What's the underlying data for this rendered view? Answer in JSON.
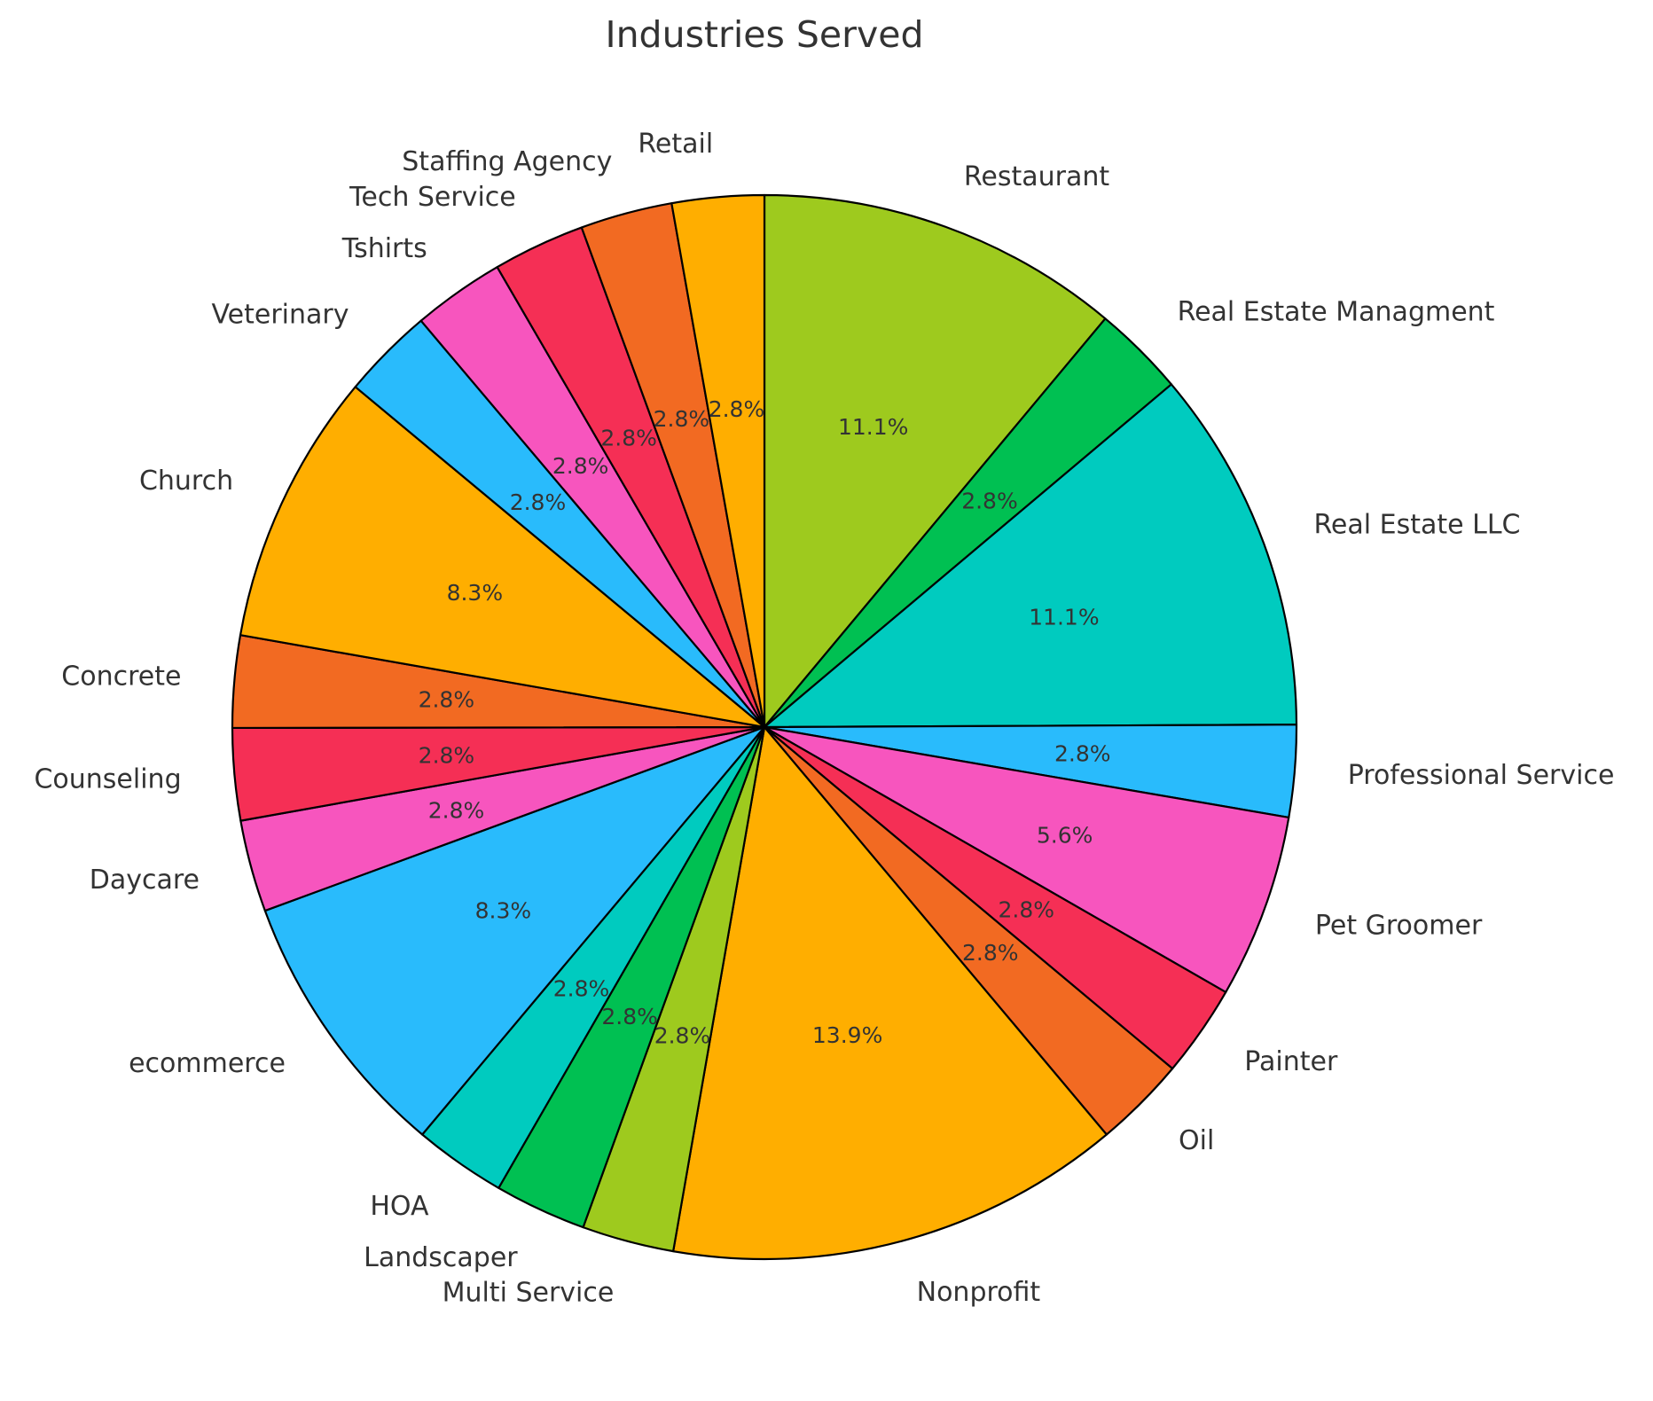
{
  "chart_data": {
    "type": "pie",
    "title": "Industries Served",
    "start_angle_deg": 90,
    "direction": "clockwise",
    "slices": [
      {
        "label": "Restaurant",
        "value": 11.1,
        "pct_label": "11.1%",
        "color": "#9ECA1E"
      },
      {
        "label": "Real Estate Managment",
        "value": 2.8,
        "pct_label": "2.8%",
        "color": "#00C052"
      },
      {
        "label": "Real Estate LLC",
        "value": 11.1,
        "pct_label": "11.1%",
        "color": "#00CBBF"
      },
      {
        "label": "Professional Service",
        "value": 2.8,
        "pct_label": "2.8%",
        "color": "#29BBFC"
      },
      {
        "label": "Pet Groomer",
        "value": 5.6,
        "pct_label": "5.6%",
        "color": "#F755BE"
      },
      {
        "label": "Painter",
        "value": 2.8,
        "pct_label": "2.8%",
        "color": "#F52F55"
      },
      {
        "label": "Oil",
        "value": 2.8,
        "pct_label": "2.8%",
        "color": "#F26A22"
      },
      {
        "label": "Nonprofit",
        "value": 13.9,
        "pct_label": "13.9%",
        "color": "#FFAE00"
      },
      {
        "label": "Multi Service",
        "value": 2.8,
        "pct_label": "2.8%",
        "color": "#9ECA1E"
      },
      {
        "label": "Landscaper",
        "value": 2.8,
        "pct_label": "2.8%",
        "color": "#00C052"
      },
      {
        "label": "HOA",
        "value": 2.8,
        "pct_label": "2.8%",
        "color": "#00CBBF"
      },
      {
        "label": "ecommerce",
        "value": 8.3,
        "pct_label": "8.3%",
        "color": "#29BBFC"
      },
      {
        "label": "Daycare",
        "value": 2.8,
        "pct_label": "2.8%",
        "color": "#F755BE"
      },
      {
        "label": "Counseling",
        "value": 2.8,
        "pct_label": "2.8%",
        "color": "#F52F55"
      },
      {
        "label": "Concrete",
        "value": 2.8,
        "pct_label": "2.8%",
        "color": "#F26A22"
      },
      {
        "label": "Church",
        "value": 8.3,
        "pct_label": "8.3%",
        "color": "#FFAE00"
      },
      {
        "label": "Veterinary",
        "value": 2.8,
        "pct_label": "2.8%",
        "color": "#29BBFC"
      },
      {
        "label": "Tshirts",
        "value": 2.8,
        "pct_label": "2.8%",
        "color": "#F755BE"
      },
      {
        "label": "Tech Service",
        "value": 2.8,
        "pct_label": "2.8%",
        "color": "#F52F55"
      },
      {
        "label": "Staffing Agency",
        "value": 2.8,
        "pct_label": "2.8%",
        "color": "#F26A22"
      },
      {
        "label": "Retail",
        "value": 2.8,
        "pct_label": "2.8%",
        "color": "#FFAE00"
      }
    ]
  }
}
